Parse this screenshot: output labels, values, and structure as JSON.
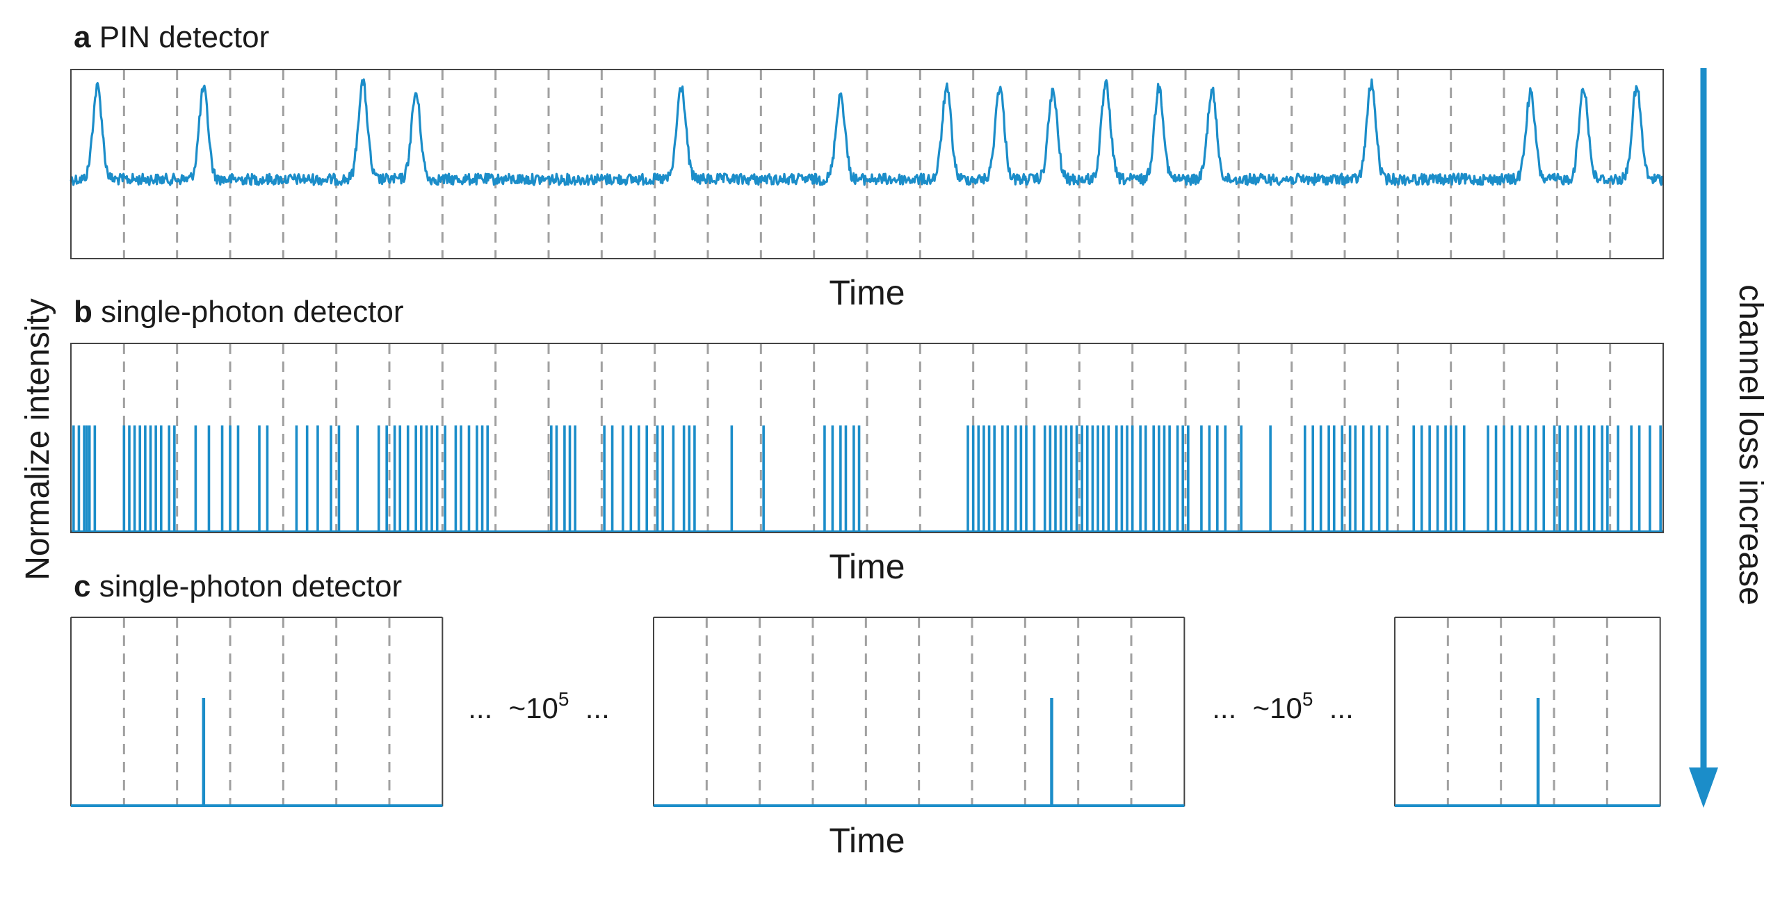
{
  "figure": {
    "y_axis_label": "Normalize intensity",
    "right_label": "channel loss increase",
    "accent_color": "#1b8dc9",
    "grid_color": "#a0a0a0"
  },
  "chart_data": [
    {
      "type": "line",
      "panel_letter": "a",
      "title": "PIN detector",
      "xlabel": "Time",
      "grid_x": true,
      "slot_count": 30,
      "baseline": 0.0,
      "peaks": [
        {
          "slot": 1,
          "height": 1.0
        },
        {
          "slot": 3,
          "height": 0.98
        },
        {
          "slot": 6,
          "height": 1.05
        },
        {
          "slot": 7,
          "height": 0.93
        },
        {
          "slot": 12,
          "height": 1.0
        },
        {
          "slot": 15,
          "height": 0.92
        },
        {
          "slot": 17,
          "height": 0.98
        },
        {
          "slot": 18,
          "height": 1.0
        },
        {
          "slot": 19,
          "height": 0.95
        },
        {
          "slot": 20,
          "height": 1.02
        },
        {
          "slot": 21,
          "height": 1.0
        },
        {
          "slot": 22,
          "height": 0.96
        },
        {
          "slot": 25,
          "height": 1.03
        },
        {
          "slot": 28,
          "height": 0.93
        },
        {
          "slot": 29,
          "height": 1.0
        },
        {
          "slot": 30,
          "height": 0.99
        }
      ]
    },
    {
      "type": "line",
      "panel_letter": "b",
      "title": "single-photon detector",
      "xlabel": "Time",
      "grid_x": true,
      "slot_count": 30,
      "pulse_times": [
        0.05,
        0.15,
        0.25,
        0.3,
        0.35,
        0.45,
        1.0,
        1.1,
        1.2,
        1.3,
        1.4,
        1.5,
        1.6,
        1.7,
        1.85,
        1.95,
        2.35,
        2.6,
        2.85,
        3.0,
        3.15,
        3.55,
        3.7,
        4.25,
        4.45,
        4.65,
        4.9,
        5.05,
        5.4,
        5.8,
        5.95,
        6.1,
        6.2,
        6.35,
        6.5,
        6.6,
        6.7,
        6.8,
        6.9,
        7.05,
        7.25,
        7.35,
        7.5,
        7.65,
        7.75,
        7.85,
        9.05,
        9.15,
        9.3,
        9.4,
        9.5,
        10.05,
        10.2,
        10.4,
        10.55,
        10.7,
        10.85,
        11.05,
        11.15,
        11.35,
        11.55,
        11.65,
        11.75,
        12.45,
        13.05,
        14.2,
        14.35,
        14.5,
        14.6,
        14.75,
        14.85,
        16.9,
        17.0,
        17.1,
        17.2,
        17.3,
        17.4,
        17.55,
        17.65,
        17.8,
        17.9,
        18.0,
        18.15,
        18.35,
        18.45,
        18.55,
        18.65,
        18.75,
        18.85,
        18.95,
        19.05,
        19.15,
        19.25,
        19.35,
        19.45,
        19.55,
        19.7,
        19.8,
        19.9,
        20.0,
        20.15,
        20.25,
        20.4,
        20.5,
        20.6,
        20.7,
        20.85,
        20.95,
        21.05,
        21.3,
        21.45,
        21.6,
        21.75,
        22.05,
        22.6,
        23.25,
        23.4,
        23.55,
        23.7,
        23.8,
        23.95,
        24.1,
        24.2,
        24.35,
        24.5,
        24.65,
        24.8,
        25.3,
        25.45,
        25.6,
        25.75,
        25.9,
        26.0,
        26.1,
        26.25,
        26.7,
        26.85,
        27.0,
        27.15,
        27.3,
        27.45,
        27.6,
        27.75,
        27.95,
        28.05,
        28.2,
        28.35,
        28.45,
        28.6,
        28.7,
        28.85,
        28.95,
        29.15,
        29.4,
        29.55,
        29.75,
        29.95
      ]
    },
    {
      "type": "line",
      "panel_letter": "c",
      "title": "single-photon detector",
      "xlabel": "Time",
      "grid_x": true,
      "segments": [
        {
          "slot_count": 7,
          "pulse_slot": 2.5
        },
        {
          "slot_count": 10,
          "pulse_slot": 7.5
        },
        {
          "slot_count": 5,
          "pulse_slot": 2.7
        }
      ],
      "gap_labels": [
        {
          "prefix": "...  ~10",
          "exponent": "5",
          "suffix": "  ..."
        },
        {
          "prefix": "...  ~10",
          "exponent": "5",
          "suffix": "  ..."
        }
      ]
    }
  ]
}
